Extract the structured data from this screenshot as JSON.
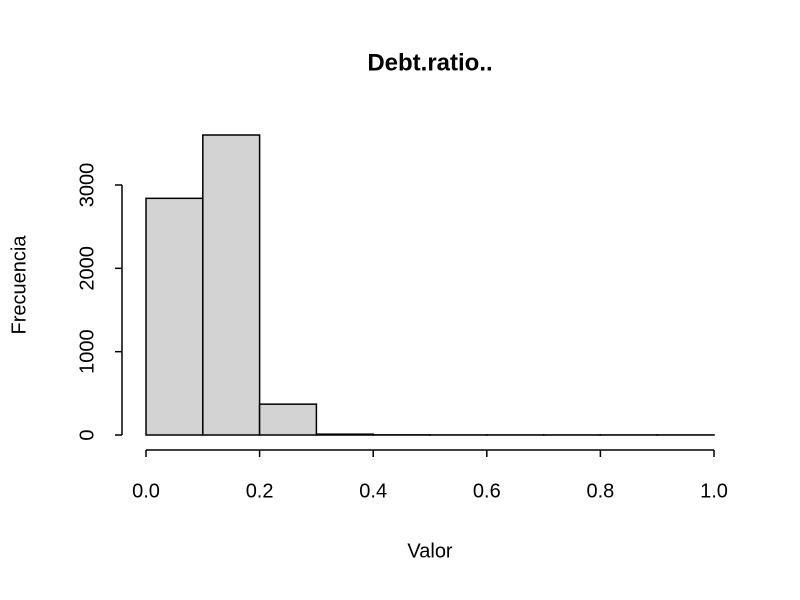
{
  "chart_data": {
    "type": "histogram",
    "title": "Debt.ratio..",
    "xlabel": "Valor",
    "ylabel": "Frecuencia",
    "bins": [
      0,
      0.1,
      0.2,
      0.3,
      0.4,
      0.5,
      0.6,
      0.7,
      0.8,
      0.9,
      1.0
    ],
    "values": [
      2840,
      3600,
      370,
      10,
      2,
      1,
      1,
      1,
      1,
      1
    ],
    "color": "#d3d3d3",
    "xlim": [
      0,
      1
    ],
    "xticks": [
      {
        "value": 0,
        "label": "0.0"
      },
      0.2,
      0.4,
      0.6,
      0.8,
      {
        "value": 1,
        "label": "1.0"
      }
    ],
    "ylim": [
      0,
      3600
    ],
    "yticks": [
      0,
      1000,
      2000,
      3000
    ]
  }
}
